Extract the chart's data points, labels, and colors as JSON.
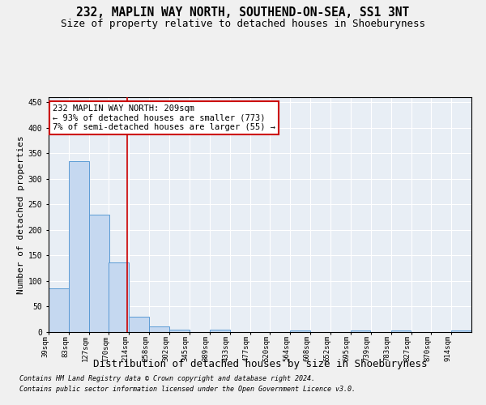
{
  "title": "232, MAPLIN WAY NORTH, SOUTHEND-ON-SEA, SS1 3NT",
  "subtitle": "Size of property relative to detached houses in Shoeburyness",
  "xlabel": "Distribution of detached houses by size in Shoeburyness",
  "ylabel": "Number of detached properties",
  "footnote1": "Contains HM Land Registry data © Crown copyright and database right 2024.",
  "footnote2": "Contains public sector information licensed under the Open Government Licence v3.0.",
  "annotation_line1": "232 MAPLIN WAY NORTH: 209sqm",
  "annotation_line2": "← 93% of detached houses are smaller (773)",
  "annotation_line3": "7% of semi-detached houses are larger (55) →",
  "property_size": 209,
  "bar_edges": [
    39,
    83,
    127,
    170,
    214,
    258,
    302,
    345,
    389,
    433,
    477,
    520,
    564,
    608,
    652,
    695,
    739,
    783,
    827,
    870,
    914
  ],
  "bar_heights": [
    85,
    335,
    230,
    137,
    30,
    11,
    5,
    0,
    5,
    0,
    0,
    0,
    3,
    0,
    0,
    3,
    0,
    3,
    0,
    0,
    3
  ],
  "bar_color": "#c5d8f0",
  "bar_edge_color": "#5b9bd5",
  "vline_color": "#cc0000",
  "vline_x": 209,
  "annotation_box_color": "#cc0000",
  "bg_color": "#e8eef5",
  "fig_color": "#f0f0f0",
  "grid_color": "#ffffff",
  "ylim": [
    0,
    460
  ],
  "title_fontsize": 10.5,
  "subtitle_fontsize": 9,
  "xlabel_fontsize": 9,
  "ylabel_fontsize": 8,
  "tick_fontsize": 6.5,
  "annotation_fontsize": 7.5,
  "footnote_fontsize": 6
}
